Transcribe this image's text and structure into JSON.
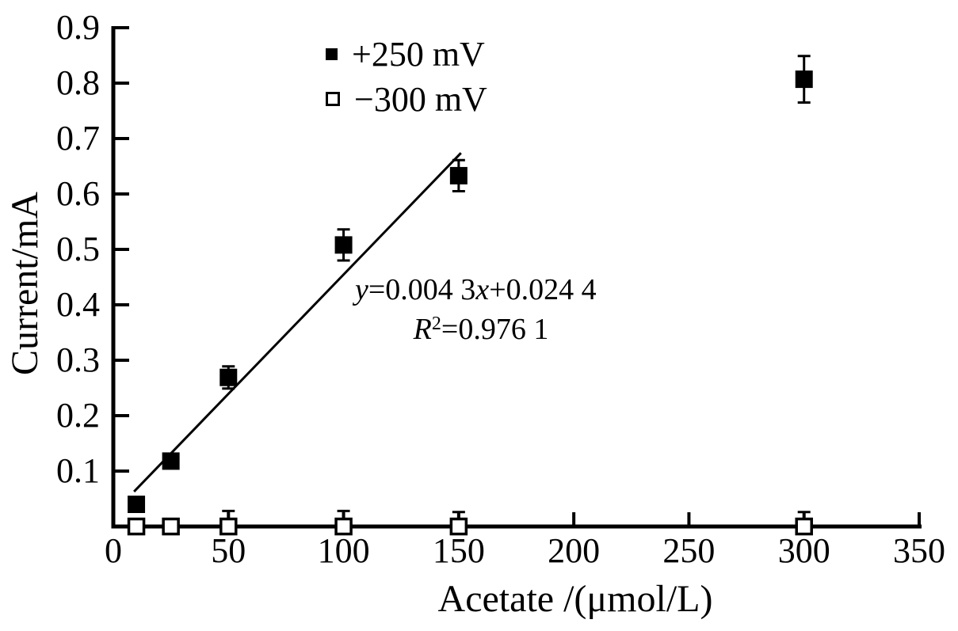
{
  "figure": {
    "background": "#ffffff",
    "ink": "#000000"
  },
  "chart_data": {
    "type": "scatter",
    "title": "",
    "xlabel": "Acetate /(μmol/L)",
    "ylabel": "Current/mA",
    "xlim": [
      0,
      350
    ],
    "ylim": [
      0,
      0.9
    ],
    "x_ticks": [
      0,
      50,
      100,
      150,
      200,
      250,
      300,
      350
    ],
    "y_ticks": [
      0.1,
      0.2,
      0.3,
      0.4,
      0.5,
      0.6,
      0.7,
      0.8,
      0.9
    ],
    "grid": false,
    "legend_position": "inside-top-left",
    "series": [
      {
        "name": "+250 mV",
        "marker": "filled-square",
        "error_bars": "both",
        "x": [
          10,
          25,
          50,
          100,
          150,
          300
        ],
        "y": [
          0.04,
          0.118,
          0.269,
          0.508,
          0.633,
          0.807
        ],
        "yerr": [
          0,
          0,
          0.02,
          0.028,
          0.028,
          0.042
        ]
      },
      {
        "name": "−300 mV",
        "marker": "open-square",
        "error_bars": "up",
        "x": [
          10,
          25,
          50,
          100,
          150,
          300
        ],
        "y": [
          0,
          0,
          0,
          0,
          0,
          0
        ],
        "yerr": [
          0,
          0,
          0.028,
          0.028,
          0.026,
          0.026
        ]
      }
    ],
    "fit_line": {
      "x_start": 9,
      "y_start": 0.063,
      "x_end": 151,
      "y_end": 0.674,
      "equation": "y=0.004 3x+0.024 4",
      "r_squared": "R²=0.976 1"
    }
  },
  "annotation_parts": {
    "y_var": "y",
    "eq_mid": "=0.004 3",
    "x_var": "x",
    "eq_end": "+0.024 4",
    "r_var": "R",
    "r_sup": "2",
    "r_rest": "=0.976 1"
  }
}
